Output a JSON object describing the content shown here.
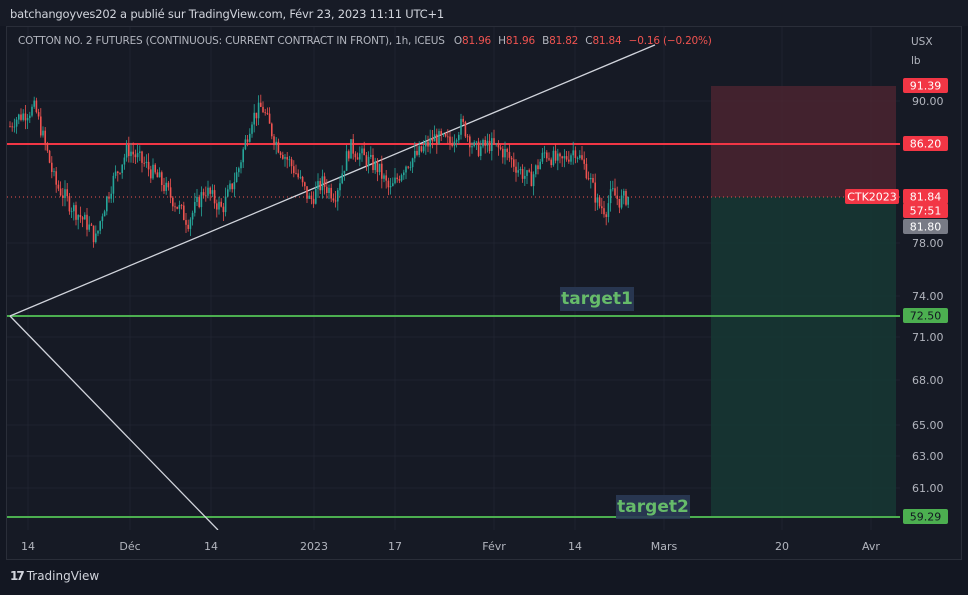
{
  "header": {
    "published_line": "batchangoyves202 a publié sur TradingView.com, Févr 23, 2023 11:11 UTC+1"
  },
  "legend": {
    "symbol": "COTTON NO. 2 FUTURES (CONTINUOUS: CURRENT CONTRACT IN FRONT), 1h, ICEUS",
    "open_label": "O",
    "open": "81.96",
    "high_label": "H",
    "high": "81.96",
    "low_label": "B",
    "low": "81.82",
    "close_label": "C",
    "close": "81.84",
    "change": "−0.16 (−0.20%)"
  },
  "price_axis": {
    "currency": "USX",
    "unit": "lb"
  },
  "footer": {
    "brand": "TradingView",
    "brand_icon": "tradingview-logo-icon"
  },
  "colors": {
    "background": "#131722",
    "bull": "#26a69a",
    "bear": "#ef5350",
    "resistance_line": "#f23645",
    "target_line": "#4caf50",
    "trendline": "#d1d4dc",
    "stop_zone": "#4a2430",
    "profit_zone": "#163633"
  },
  "chart_data": {
    "type": "candlestick",
    "title": "COTTON NO. 2 FUTURES (CONTINUOUS: CURRENT CONTRACT IN FRONT), 1h, ICEUS",
    "ylabel": "USX / lb",
    "ylim": [
      58.2,
      95.5
    ],
    "y_ticks": [
      90.0,
      78.0,
      74.0,
      71.0,
      68.0,
      65.0,
      63.0,
      61.0
    ],
    "x_ticks": [
      "14",
      "Déc",
      "14",
      "2023",
      "17",
      "Févr",
      "14",
      "Mars",
      "20",
      "Avr"
    ],
    "price_path": [
      [
        0,
        86.5
      ],
      [
        15,
        88.4
      ],
      [
        35,
        89.4
      ],
      [
        55,
        83.0
      ],
      [
        72,
        81.0
      ],
      [
        88,
        79.5
      ],
      [
        96,
        78.3
      ],
      [
        102,
        80.5
      ],
      [
        112,
        83.0
      ],
      [
        128,
        85.8
      ],
      [
        145,
        84.5
      ],
      [
        160,
        83.2
      ],
      [
        178,
        81.0
      ],
      [
        188,
        79.8
      ],
      [
        205,
        82.5
      ],
      [
        222,
        80.8
      ],
      [
        238,
        84.0
      ],
      [
        252,
        88.5
      ],
      [
        262,
        89.5
      ],
      [
        275,
        86.5
      ],
      [
        295,
        84.0
      ],
      [
        310,
        81.5
      ],
      [
        322,
        83.0
      ],
      [
        335,
        82.0
      ],
      [
        350,
        86.0
      ],
      [
        365,
        85.0
      ],
      [
        378,
        84.2
      ],
      [
        390,
        82.3
      ],
      [
        405,
        84.5
      ],
      [
        420,
        85.5
      ],
      [
        435,
        86.8
      ],
      [
        450,
        86.3
      ],
      [
        462,
        88.0
      ],
      [
        475,
        85.7
      ],
      [
        490,
        86.2
      ],
      [
        505,
        85.5
      ],
      [
        520,
        84.0
      ],
      [
        530,
        83.2
      ],
      [
        545,
        85.5
      ],
      [
        560,
        84.6
      ],
      [
        575,
        85.8
      ],
      [
        588,
        83.8
      ],
      [
        598,
        81.2
      ],
      [
        606,
        80.8
      ],
      [
        612,
        82.2
      ],
      [
        620,
        81.5
      ],
      [
        627,
        81.84
      ]
    ],
    "horizontal_levels": [
      {
        "price": 86.2,
        "label": "86.20",
        "color": "#f23645"
      },
      {
        "price": 72.5,
        "label": "72.50",
        "color": "#4caf50",
        "annotation": "target1"
      },
      {
        "price": 59.29,
        "label": "59.29",
        "color": "#4caf50",
        "annotation": "target2"
      }
    ],
    "trendlines": [
      {
        "from": [
          10,
          72.5
        ],
        "to": [
          655,
          95.2
        ]
      },
      {
        "from": [
          10,
          72.5
        ],
        "to": [
          218,
          58.2
        ]
      }
    ],
    "position": {
      "stop": 91.39,
      "entry": 81.84,
      "target": 59.29,
      "stop_label": "91.39",
      "target_label": "59.29"
    },
    "last_price": {
      "symbol": "CTK2023",
      "price": "81.84",
      "countdown": "57:51",
      "bid": "81.80"
    },
    "annotations": [
      "target1",
      "target2"
    ]
  }
}
